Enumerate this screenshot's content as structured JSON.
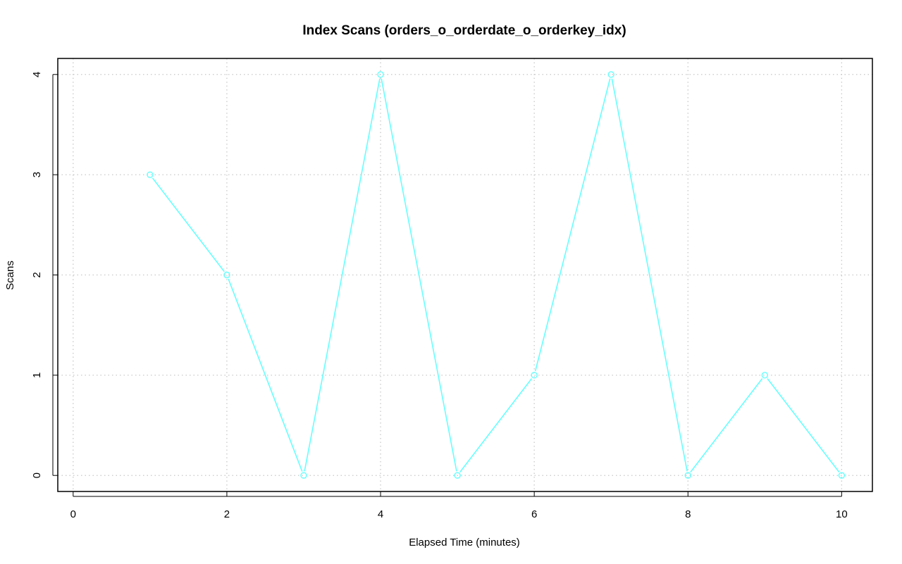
{
  "chart_data": {
    "type": "line",
    "title": "Index Scans (orders_o_orderdate_o_orderkey_idx)",
    "xlabel": "Elapsed Time (minutes)",
    "ylabel": "Scans",
    "xlim": [
      -0.2,
      10.4
    ],
    "ylim": [
      -0.16,
      4.16
    ],
    "x_ticks": [
      0,
      2,
      4,
      6,
      8,
      10
    ],
    "y_ticks": [
      0,
      1,
      2,
      3,
      4
    ],
    "grid": true,
    "legend": "none",
    "series": [
      {
        "color": "#66ffff",
        "marker": "circle",
        "x": [
          1,
          2,
          3,
          4,
          5,
          6,
          7,
          8,
          9,
          10
        ],
        "y": [
          3,
          2,
          0,
          4,
          0,
          1,
          4,
          0,
          1,
          0
        ]
      }
    ]
  }
}
